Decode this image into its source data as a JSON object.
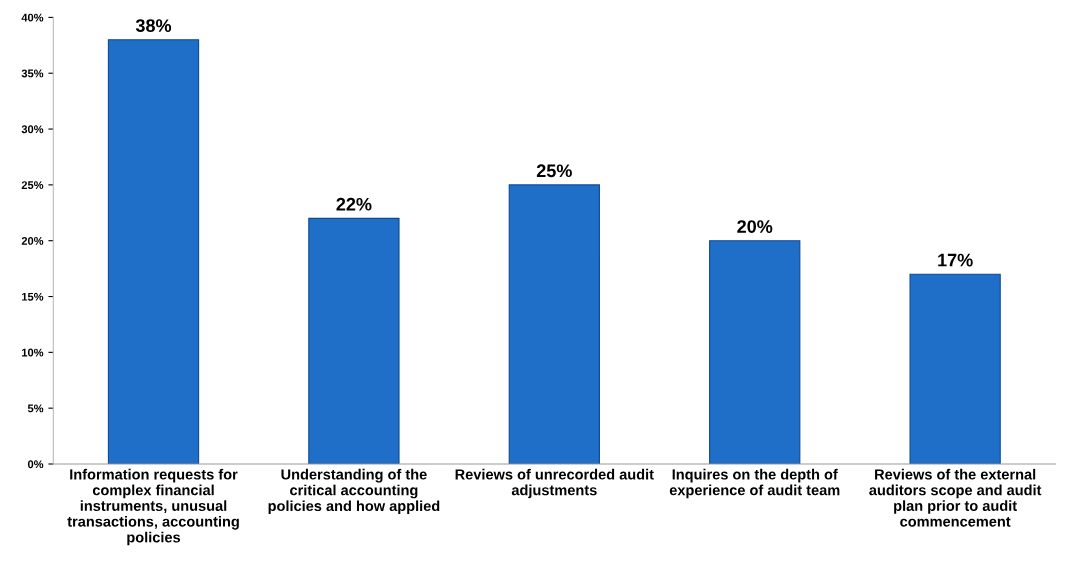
{
  "chart_data": {
    "type": "bar",
    "categories": [
      "Information requests for complex financial instruments, unusual transactions, accounting policies",
      "Understanding of the critical accounting policies and how applied",
      "Reviews of unrecorded audit adjustments",
      "Inquires on the depth of experience of audit team",
      "Reviews of the external auditors scope and audit plan prior to audit commencement"
    ],
    "values": [
      38,
      22,
      25,
      20,
      17
    ],
    "value_labels": [
      "38%",
      "22%",
      "25%",
      "20%",
      "17%"
    ],
    "color": "#1f6fc8",
    "ylim": [
      0,
      40
    ],
    "yticks": [
      {
        "value": 0,
        "label": "0%"
      },
      {
        "value": 5,
        "label": "5%"
      },
      {
        "value": 10,
        "label": "10%"
      },
      {
        "value": 15,
        "label": "15%"
      },
      {
        "value": 20,
        "label": "20%"
      },
      {
        "value": 25,
        "label": "25%"
      },
      {
        "value": 30,
        "label": "30%"
      },
      {
        "value": 35,
        "label": "35%"
      },
      {
        "value": 40,
        "label": "40%"
      }
    ],
    "grid": false,
    "legend": false
  }
}
